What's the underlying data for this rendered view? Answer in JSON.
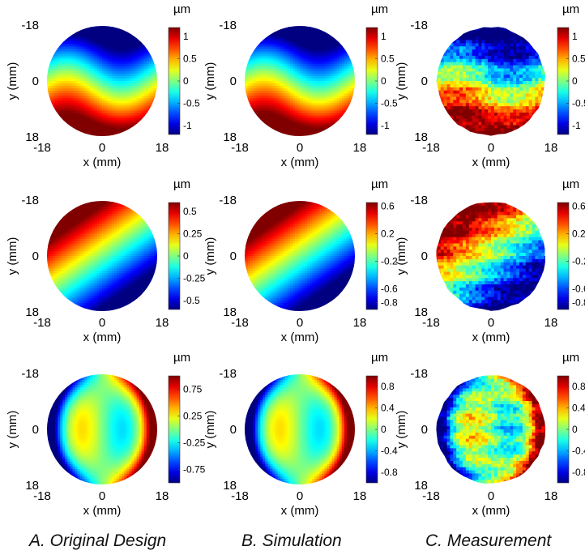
{
  "captions": [
    "A. Original Design",
    "B. Simulation",
    "C. Measurement"
  ],
  "chart_data": [
    {
      "type": "heatmap",
      "panel": "A-row1",
      "pattern": "tilt-y",
      "angle_deg": 0,
      "variant": "smooth",
      "xlabel": "x (mm)",
      "ylabel": "y (mm)",
      "xticks": [
        "-18",
        "0",
        "18"
      ],
      "yticks": [
        "-18",
        "0",
        "18"
      ],
      "colorbar": {
        "unit": "µm",
        "range": [
          -1.2,
          1.2
        ],
        "ticks": [
          "1",
          "0.5",
          "0",
          "-0.5",
          "-1"
        ]
      }
    },
    {
      "type": "heatmap",
      "panel": "B-row1",
      "pattern": "tilt-y",
      "angle_deg": 0,
      "variant": "smooth",
      "xlabel": "x (mm)",
      "ylabel": "y (mm)",
      "xticks": [
        "-18",
        "0",
        "18"
      ],
      "yticks": [
        "-18",
        "0",
        "18"
      ],
      "colorbar": {
        "unit": "µm",
        "range": [
          -1.2,
          1.2
        ],
        "ticks": [
          "1",
          "0.5",
          "0",
          "-0.5",
          "-1"
        ]
      }
    },
    {
      "type": "heatmap",
      "panel": "C-row1",
      "pattern": "tilt-y",
      "angle_deg": 0,
      "variant": "measured",
      "xlabel": "x (mm)",
      "ylabel": "y (mm)",
      "xticks": [
        "-18",
        "0",
        "18"
      ],
      "yticks": [
        "-18",
        "0",
        "18"
      ],
      "colorbar": {
        "unit": "µm",
        "range": [
          -1.2,
          1.2
        ],
        "ticks": [
          "1",
          "0.5",
          "0",
          "-0.5",
          "-1"
        ]
      }
    },
    {
      "type": "heatmap",
      "panel": "A-row2",
      "pattern": "tilt-diag",
      "angle_deg": -25,
      "variant": "smooth",
      "xlabel": "x (mm)",
      "ylabel": "y (mm)",
      "xticks": [
        "-18",
        "0",
        "18"
      ],
      "yticks": [
        "-18",
        "0",
        "18"
      ],
      "colorbar": {
        "unit": "µm",
        "range": [
          -0.6,
          0.6
        ],
        "ticks": [
          "0.5",
          "0.25",
          "0",
          "-0.25",
          "-0.5"
        ]
      }
    },
    {
      "type": "heatmap",
      "panel": "B-row2",
      "pattern": "tilt-diag",
      "angle_deg": -25,
      "variant": "smooth",
      "xlabel": "x (mm)",
      "ylabel": "y (mm)",
      "xticks": [
        "-18",
        "0",
        "18"
      ],
      "yticks": [
        "-18",
        "0",
        "18"
      ],
      "colorbar": {
        "unit": "µm",
        "range": [
          -0.9,
          0.65
        ],
        "ticks": [
          "0.6",
          "0.2",
          "-0.2",
          "-0.6",
          "-0.8"
        ]
      }
    },
    {
      "type": "heatmap",
      "panel": "C-row2",
      "pattern": "tilt-diag",
      "angle_deg": -25,
      "variant": "measured",
      "xlabel": "x (mm)",
      "ylabel": "y (mm)",
      "xticks": [
        "-18",
        "0",
        "18"
      ],
      "yticks": [
        "-18",
        "0",
        "18"
      ],
      "colorbar": {
        "unit": "µm",
        "range": [
          -0.9,
          0.65
        ],
        "ticks": [
          "0.6",
          "0.2",
          "-0.2",
          "-0.6",
          "-0.8"
        ]
      }
    },
    {
      "type": "heatmap",
      "panel": "A-row3",
      "pattern": "coma-x",
      "angle_deg": 0,
      "variant": "smooth",
      "xlabel": "x (mm)",
      "ylabel": "y (mm)",
      "xticks": [
        "-18",
        "0",
        "18"
      ],
      "yticks": [
        "-18",
        "0",
        "18"
      ],
      "colorbar": {
        "unit": "µm",
        "range": [
          -1.0,
          1.0
        ],
        "ticks": [
          "0.75",
          "0.25",
          "-0.25",
          "-0.75"
        ]
      }
    },
    {
      "type": "heatmap",
      "panel": "B-row3",
      "pattern": "coma-x",
      "angle_deg": 0,
      "variant": "smooth",
      "xlabel": "x (mm)",
      "ylabel": "y (mm)",
      "xticks": [
        "-18",
        "0",
        "18"
      ],
      "yticks": [
        "-18",
        "0",
        "18"
      ],
      "colorbar": {
        "unit": "µm",
        "range": [
          -1.0,
          1.0
        ],
        "ticks": [
          "0.8",
          "0.4",
          "0",
          "-0.4",
          "-0.8"
        ]
      }
    },
    {
      "type": "heatmap",
      "panel": "C-row3",
      "pattern": "coma-x",
      "angle_deg": 0,
      "variant": "measured",
      "xlabel": "x (mm)",
      "ylabel": "y (mm)",
      "xticks": [
        "-18",
        "0",
        "18"
      ],
      "yticks": [
        "-18",
        "0",
        "18"
      ],
      "colorbar": {
        "unit": "µm",
        "range": [
          -1.0,
          1.0
        ],
        "ticks": [
          "0.8",
          "0.4",
          "0",
          "-0.4",
          "-0.8"
        ]
      }
    }
  ]
}
